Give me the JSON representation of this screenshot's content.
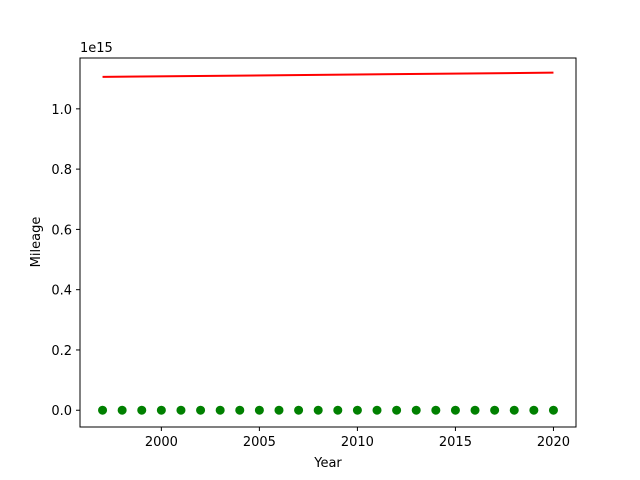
{
  "chart_data": {
    "type": "scatter",
    "title": "",
    "xlabel": "Year",
    "ylabel": "Mileage",
    "y_offset_text": "1e15",
    "xlim": [
      1995.85,
      2021.15
    ],
    "ylim": [
      -0.0556,
      1.1687
    ],
    "y_unit_multiplier": 1000000000000000.0,
    "x_ticks": [
      2000,
      2005,
      2010,
      2015,
      2020
    ],
    "x_tick_labels": [
      "2000",
      "2005",
      "2010",
      "2015",
      "2020"
    ],
    "y_ticks": [
      0.0,
      0.2,
      0.4,
      0.6,
      0.8,
      1.0
    ],
    "y_tick_labels": [
      "0.0",
      "0.2",
      "0.4",
      "0.6",
      "0.8",
      "1.0"
    ],
    "grid": false,
    "series": [
      {
        "kind": "scatter",
        "color": "#008000",
        "x": [
          1997,
          1998,
          1999,
          2000,
          2001,
          2002,
          2003,
          2004,
          2005,
          2006,
          2007,
          2008,
          2009,
          2010,
          2011,
          2012,
          2013,
          2014,
          2015,
          2016,
          2017,
          2018,
          2019,
          2020
        ],
        "y": [
          0,
          0,
          0,
          0,
          0,
          0,
          0,
          0,
          0,
          0,
          0,
          0,
          0,
          0,
          0,
          0,
          0,
          0,
          0,
          0,
          0,
          0,
          0,
          0
        ]
      },
      {
        "kind": "line",
        "color": "#ff0000",
        "x": [
          1997,
          2020
        ],
        "y": [
          1.106,
          1.12
        ]
      }
    ]
  }
}
